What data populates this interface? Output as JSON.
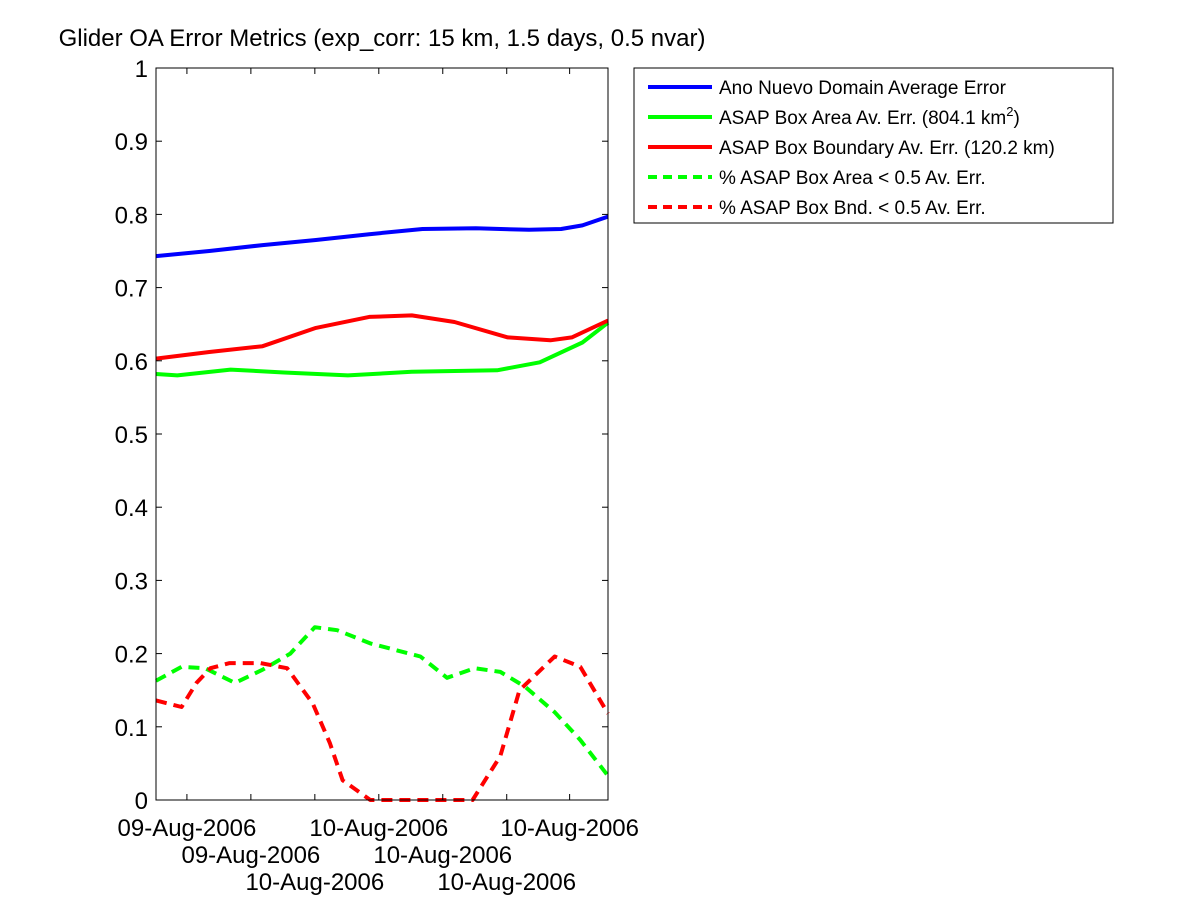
{
  "chart_data": {
    "type": "line",
    "title": "Glider OA Error Metrics (exp_corr: 15 km, 1.5 days, 0.5 nvar)",
    "xlabel": "",
    "ylabel": "",
    "x_units": "hours (approx., relative to left axis edge)",
    "xlim": [
      0,
      42.4
    ],
    "ylim": [
      0,
      1
    ],
    "grid": false,
    "yticks": [
      0,
      0.1,
      0.2,
      0.3,
      0.4,
      0.5,
      0.6,
      0.7,
      0.8,
      0.9,
      1
    ],
    "ytick_labels": [
      "0",
      "0.1",
      "0.2",
      "0.3",
      "0.4",
      "0.5",
      "0.6",
      "0.7",
      "0.8",
      "0.9",
      "1"
    ],
    "xticks": [
      2.9,
      8.9,
      14.9,
      20.9,
      26.9,
      32.9,
      38.8
    ],
    "xtick_labels": [
      "09-Aug-2006",
      "09-Aug-2006",
      "10-Aug-2006",
      "10-Aug-2006",
      "10-Aug-2006",
      "10-Aug-2006",
      "10-Aug-2006"
    ],
    "legend_position": "outside-top-right",
    "series": [
      {
        "name": "Ano Nuevo Domain Average Error",
        "color": "#0000ff",
        "style": "solid",
        "x": [
          0,
          5,
          10,
          15,
          20,
          25,
          30,
          35,
          38,
          40,
          42.4
        ],
        "y": [
          0.743,
          0.75,
          0.758,
          0.765,
          0.773,
          0.78,
          0.781,
          0.779,
          0.78,
          0.785,
          0.797
        ]
      },
      {
        "name": "ASAP Box Area Av. Err. (804.1 km",
        "name_sup": "2",
        "name_end": ")",
        "color": "#00ff00",
        "style": "solid",
        "x": [
          0,
          2,
          7,
          12,
          18,
          24,
          32,
          36,
          40,
          42.4
        ],
        "y": [
          0.582,
          0.58,
          0.588,
          0.584,
          0.58,
          0.585,
          0.587,
          0.598,
          0.625,
          0.652
        ]
      },
      {
        "name": "ASAP Box Boundary Av. Err. (120.2 km)",
        "color": "#ff0000",
        "style": "solid",
        "x": [
          0,
          5,
          10,
          15,
          20,
          24,
          28,
          33,
          37,
          39,
          42.4
        ],
        "y": [
          0.603,
          0.612,
          0.62,
          0.645,
          0.66,
          0.662,
          0.653,
          0.632,
          0.628,
          0.632,
          0.655
        ]
      },
      {
        "name": "% ASAP Box Area < 0.5 Av. Err.",
        "color": "#00ff00",
        "style": "dashed",
        "x": [
          0,
          2.4,
          4.6,
          7.4,
          10,
          12.6,
          14.9,
          17,
          20.1,
          24.8,
          27.3,
          29.9,
          32.3,
          34.6,
          37.4,
          39.8,
          42.4
        ],
        "y": [
          0.163,
          0.182,
          0.18,
          0.16,
          0.178,
          0.2,
          0.236,
          0.232,
          0.214,
          0.196,
          0.167,
          0.18,
          0.175,
          0.155,
          0.12,
          0.082,
          0.033
        ]
      },
      {
        "name": "% ASAP Box Bnd. < 0.5 Av. Err.",
        "color": "#ff0000",
        "style": "dashed",
        "x": [
          0,
          2.4,
          3.8,
          5.1,
          6.9,
          9.8,
          12.3,
          14.7,
          16.3,
          17.5,
          20.1,
          29.7,
          32.3,
          34.1,
          37.4,
          39.8,
          42.4
        ],
        "y": [
          0.136,
          0.127,
          0.16,
          0.18,
          0.187,
          0.187,
          0.18,
          0.132,
          0.078,
          0.027,
          0,
          0,
          0.06,
          0.15,
          0.196,
          0.182,
          0.118
        ]
      }
    ]
  }
}
